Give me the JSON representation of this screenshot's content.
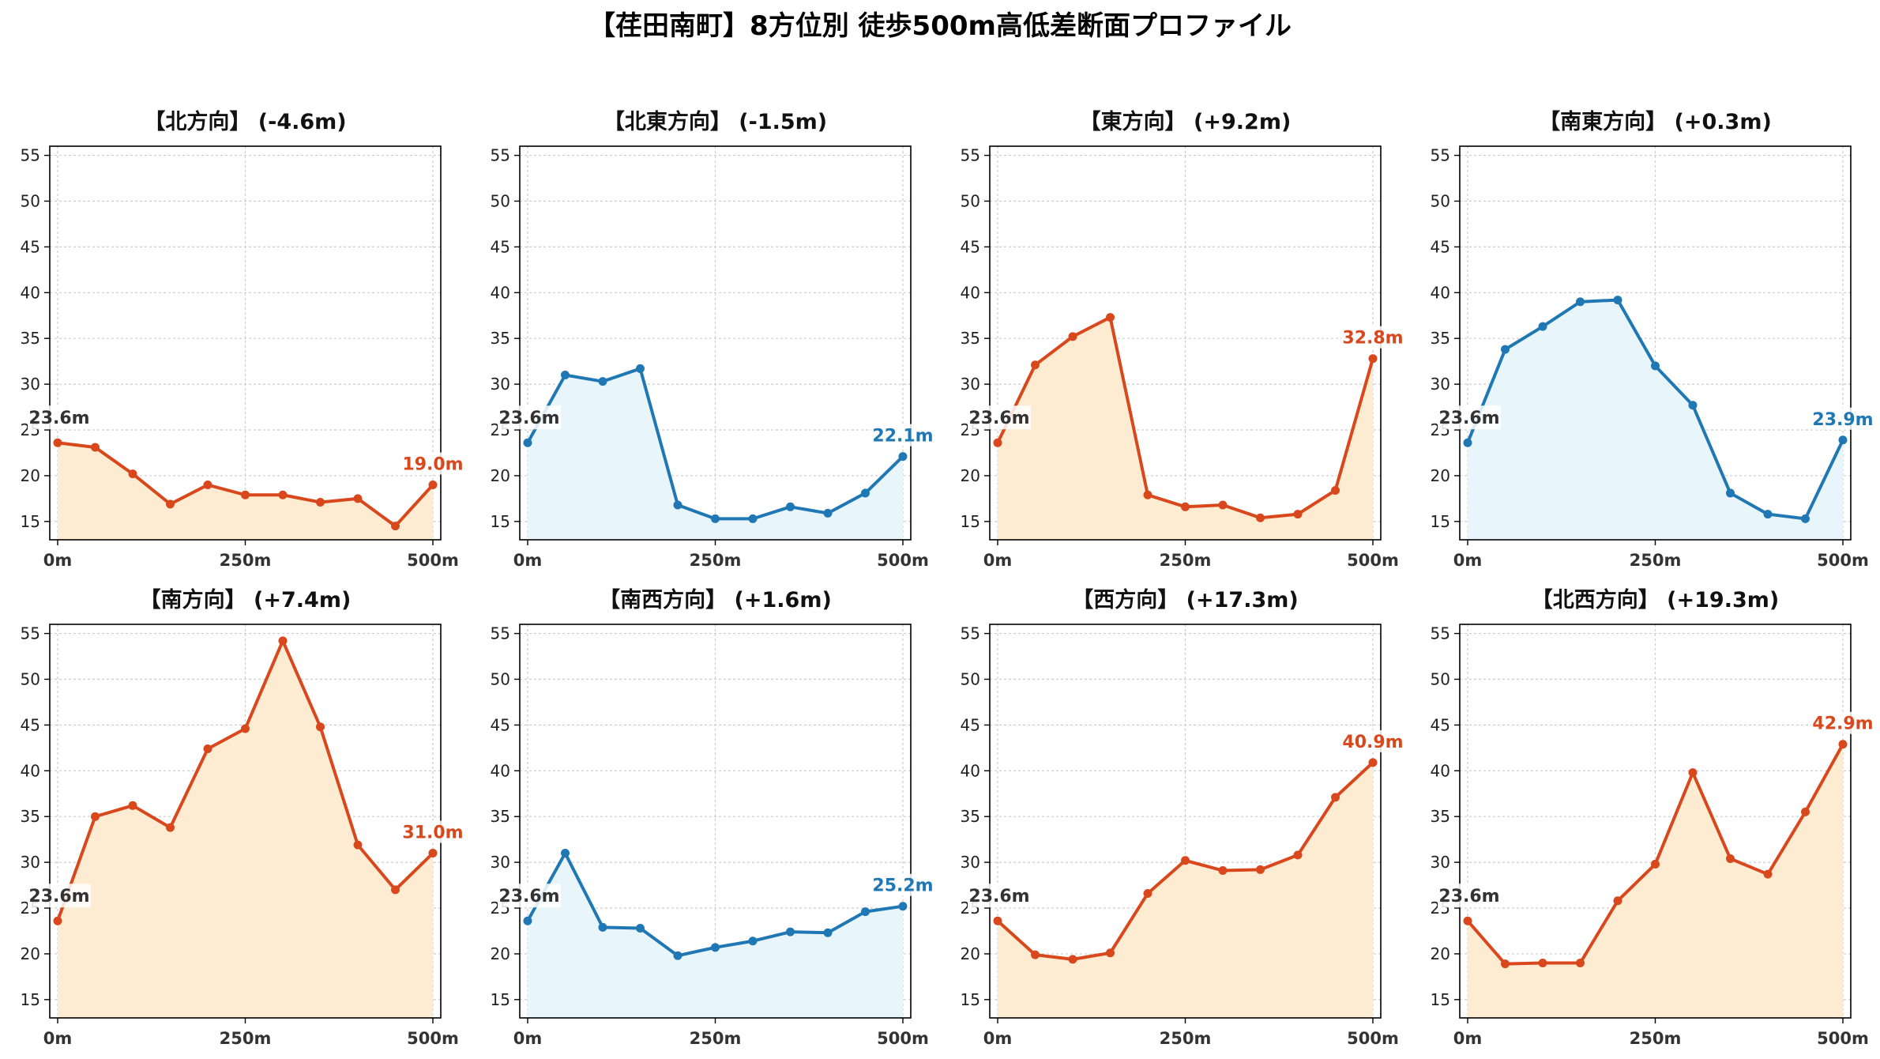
{
  "page": {
    "title": "【荏田南町】8方位別 徒歩500m高低差断面プロファイル"
  },
  "colors": {
    "up_line": "#d9481c",
    "up_fill": "#fdebd2",
    "down_line": "#1f78b4",
    "down_fill": "#e8f6fc",
    "start_label": "#333333",
    "grid": "#cccccc",
    "axis": "#000000"
  },
  "chart_data": [
    {
      "type": "area",
      "title": "【北方向】 (-4.6m)",
      "trend": "up",
      "x": [
        0,
        50,
        100,
        150,
        200,
        250,
        300,
        350,
        400,
        450,
        500
      ],
      "values": [
        23.6,
        23.1,
        20.2,
        16.9,
        19.0,
        17.9,
        17.9,
        17.1,
        17.5,
        14.5,
        19.0
      ],
      "xticks": [
        "0m",
        "250m",
        "500m"
      ],
      "yticks": [
        15,
        20,
        25,
        30,
        35,
        40,
        45,
        50,
        55
      ],
      "ylim": [
        13,
        56
      ],
      "start_label": "23.6m",
      "end_label": "19.0m"
    },
    {
      "type": "area",
      "title": "【北東方向】 (-1.5m)",
      "trend": "down",
      "x": [
        0,
        50,
        100,
        150,
        200,
        250,
        300,
        350,
        400,
        450,
        500
      ],
      "values": [
        23.6,
        31.0,
        30.3,
        31.7,
        16.8,
        15.3,
        15.3,
        16.6,
        15.9,
        18.1,
        22.1
      ],
      "xticks": [
        "0m",
        "250m",
        "500m"
      ],
      "yticks": [
        15,
        20,
        25,
        30,
        35,
        40,
        45,
        50,
        55
      ],
      "ylim": [
        13,
        56
      ],
      "start_label": "23.6m",
      "end_label": "22.1m"
    },
    {
      "type": "area",
      "title": "【東方向】 (+9.2m)",
      "trend": "up",
      "x": [
        0,
        50,
        100,
        150,
        200,
        250,
        300,
        350,
        400,
        450,
        500
      ],
      "values": [
        23.6,
        32.1,
        35.2,
        37.3,
        17.9,
        16.6,
        16.8,
        15.4,
        15.8,
        18.4,
        32.8
      ],
      "xticks": [
        "0m",
        "250m",
        "500m"
      ],
      "yticks": [
        15,
        20,
        25,
        30,
        35,
        40,
        45,
        50,
        55
      ],
      "ylim": [
        13,
        56
      ],
      "start_label": "23.6m",
      "end_label": "32.8m"
    },
    {
      "type": "area",
      "title": "【南東方向】 (+0.3m)",
      "trend": "down",
      "x": [
        0,
        50,
        100,
        150,
        200,
        250,
        300,
        350,
        400,
        450,
        500
      ],
      "values": [
        23.6,
        33.8,
        36.3,
        39.0,
        39.2,
        32.0,
        27.7,
        18.1,
        15.8,
        15.3,
        23.9
      ],
      "xticks": [
        "0m",
        "250m",
        "500m"
      ],
      "yticks": [
        15,
        20,
        25,
        30,
        35,
        40,
        45,
        50,
        55
      ],
      "ylim": [
        13,
        56
      ],
      "start_label": "23.6m",
      "end_label": "23.9m"
    },
    {
      "type": "area",
      "title": "【南方向】 (+7.4m)",
      "trend": "up",
      "x": [
        0,
        50,
        100,
        150,
        200,
        250,
        300,
        350,
        400,
        450,
        500
      ],
      "values": [
        23.6,
        35.0,
        36.2,
        33.8,
        42.4,
        44.6,
        54.2,
        44.8,
        31.9,
        27.0,
        31.0
      ],
      "xticks": [
        "0m",
        "250m",
        "500m"
      ],
      "yticks": [
        15,
        20,
        25,
        30,
        35,
        40,
        45,
        50,
        55
      ],
      "ylim": [
        13,
        56
      ],
      "start_label": "23.6m",
      "end_label": "31.0m"
    },
    {
      "type": "area",
      "title": "【南西方向】 (+1.6m)",
      "trend": "down",
      "x": [
        0,
        50,
        100,
        150,
        200,
        250,
        300,
        350,
        400,
        450,
        500
      ],
      "values": [
        23.6,
        31.0,
        22.9,
        22.8,
        19.8,
        20.7,
        21.4,
        22.4,
        22.3,
        24.6,
        25.2
      ],
      "xticks": [
        "0m",
        "250m",
        "500m"
      ],
      "yticks": [
        15,
        20,
        25,
        30,
        35,
        40,
        45,
        50,
        55
      ],
      "ylim": [
        13,
        56
      ],
      "start_label": "23.6m",
      "end_label": "25.2m"
    },
    {
      "type": "area",
      "title": "【西方向】 (+17.3m)",
      "trend": "up",
      "x": [
        0,
        50,
        100,
        150,
        200,
        250,
        300,
        350,
        400,
        450,
        500
      ],
      "values": [
        23.6,
        19.9,
        19.4,
        20.1,
        26.6,
        30.2,
        29.1,
        29.2,
        30.8,
        37.1,
        40.9
      ],
      "xticks": [
        "0m",
        "250m",
        "500m"
      ],
      "yticks": [
        15,
        20,
        25,
        30,
        35,
        40,
        45,
        50,
        55
      ],
      "ylim": [
        13,
        56
      ],
      "start_label": "23.6m",
      "end_label": "40.9m"
    },
    {
      "type": "area",
      "title": "【北西方向】 (+19.3m)",
      "trend": "up",
      "x": [
        0,
        50,
        100,
        150,
        200,
        250,
        300,
        350,
        400,
        450,
        500
      ],
      "values": [
        23.6,
        18.9,
        19.0,
        19.0,
        25.8,
        29.8,
        39.8,
        30.4,
        28.7,
        35.5,
        42.9
      ],
      "xticks": [
        "0m",
        "250m",
        "500m"
      ],
      "yticks": [
        15,
        20,
        25,
        30,
        35,
        40,
        45,
        50,
        55
      ],
      "ylim": [
        13,
        56
      ],
      "start_label": "23.6m",
      "end_label": "42.9m"
    }
  ]
}
